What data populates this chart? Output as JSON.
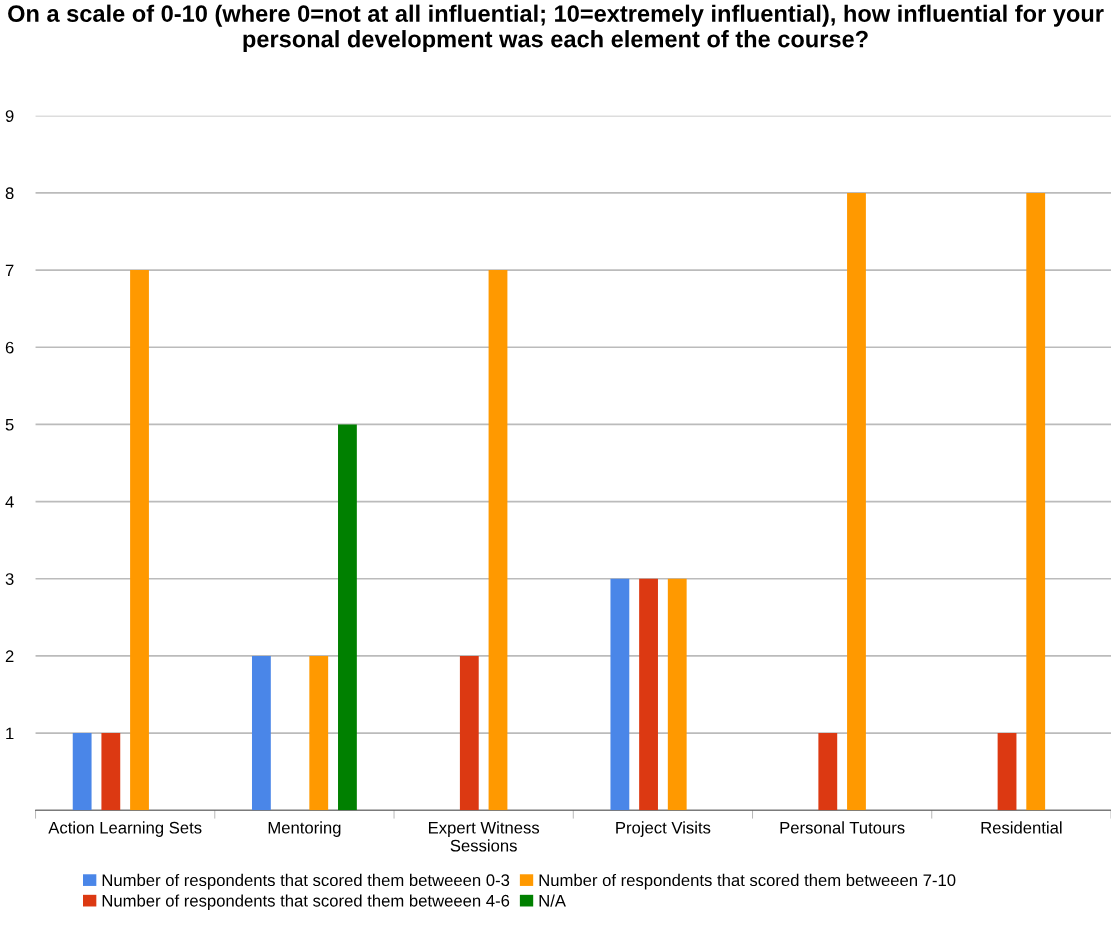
{
  "chart_data": {
    "type": "bar",
    "title": "On a scale of 0-10 (where 0=not at all influential; 10=extremely influential), how influential for your personal development was each element of the course?",
    "categories": [
      "Action Learning Sets",
      "Mentoring",
      "Expert Witness\nSessions",
      "Project Visits",
      "Personal Tutours",
      "Residential"
    ],
    "series": [
      {
        "name": "Number of respondents that scored them betweeen 0-3",
        "color": "#4a86e8",
        "values": [
          1,
          2,
          null,
          3,
          null,
          null
        ]
      },
      {
        "name": "Number of respondents that scored them betweeen 4-6",
        "color": "#dc3912",
        "values": [
          1,
          null,
          2,
          3,
          1,
          1
        ]
      },
      {
        "name": "Number of respondents that scored them betweeen 7-10",
        "color": "#ff9900",
        "values": [
          7,
          2,
          7,
          3,
          8,
          8
        ]
      },
      {
        "name": "N/A",
        "color": "#008000",
        "values": [
          null,
          5,
          null,
          null,
          null,
          null
        ]
      }
    ],
    "ylim": [
      0,
      9
    ],
    "yticks": [
      {
        "value": 0,
        "label": null
      },
      1,
      2,
      3,
      4,
      5,
      6,
      7,
      8,
      9
    ],
    "grid": "y",
    "legend": "bottom"
  }
}
